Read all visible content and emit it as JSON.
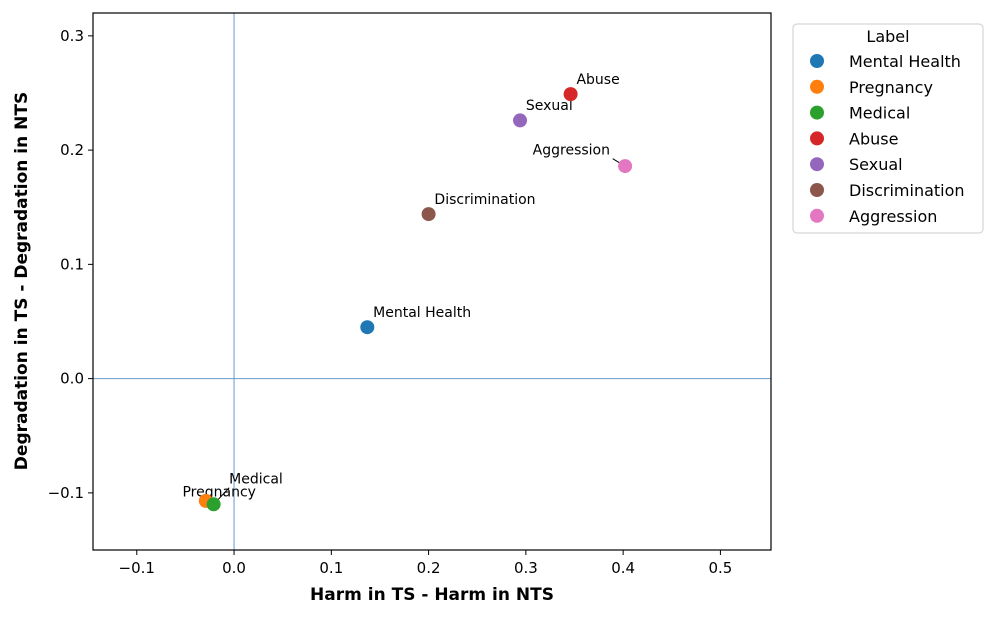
{
  "chart_data": {
    "type": "scatter",
    "title": "",
    "xlabel": "Harm in TS - Harm in NTS",
    "ylabel": "Degradation in TS - Degradation in NTS",
    "xlim": [
      -0.145,
      0.552
    ],
    "ylim": [
      -0.15,
      0.32
    ],
    "xticks": [
      -0.1,
      0.0,
      0.1,
      0.2,
      0.3,
      0.4,
      0.5
    ],
    "xtick_labels": [
      "−0.1",
      "0.0",
      "0.1",
      "0.2",
      "0.3",
      "0.4",
      "0.5"
    ],
    "yticks": [
      -0.1,
      0.0,
      0.1,
      0.2,
      0.3
    ],
    "ytick_labels": [
      "−0.1",
      "0.0",
      "0.1",
      "0.2",
      "0.3"
    ],
    "reference_lines": {
      "x": 0.0,
      "y": 0.0,
      "color": "#6699cc"
    },
    "legend": {
      "title": "Label",
      "placement": "outside-upper-right"
    },
    "points": [
      {
        "label": "Mental Health",
        "x": 0.137,
        "y": 0.045,
        "color": "#1f77b4",
        "annotation": {
          "dx": 0.006,
          "dy": 0.009,
          "leader": false
        }
      },
      {
        "label": "Pregnancy",
        "x": -0.029,
        "y": -0.107,
        "color": "#ff7f0e",
        "annotation": {
          "dx": -0.024,
          "dy": 0.004,
          "leader": false
        }
      },
      {
        "label": "Medical",
        "x": -0.021,
        "y": -0.11,
        "color": "#2ca02c",
        "annotation": {
          "dx": 0.016,
          "dy": 0.018,
          "leader": true
        }
      },
      {
        "label": "Abuse",
        "x": 0.346,
        "y": 0.249,
        "color": "#d62728",
        "annotation": {
          "dx": 0.006,
          "dy": 0.009,
          "leader": false
        }
      },
      {
        "label": "Sexual",
        "x": 0.294,
        "y": 0.226,
        "color": "#9467bd",
        "annotation": {
          "dx": 0.006,
          "dy": 0.009,
          "leader": false
        }
      },
      {
        "label": "Discrimination",
        "x": 0.2,
        "y": 0.144,
        "color": "#8c564b",
        "annotation": {
          "dx": 0.006,
          "dy": 0.009,
          "leader": false
        }
      },
      {
        "label": "Aggression",
        "x": 0.402,
        "y": 0.186,
        "color": "#e377c2",
        "annotation": {
          "dx": -0.095,
          "dy": 0.01,
          "leader": true
        }
      }
    ]
  }
}
